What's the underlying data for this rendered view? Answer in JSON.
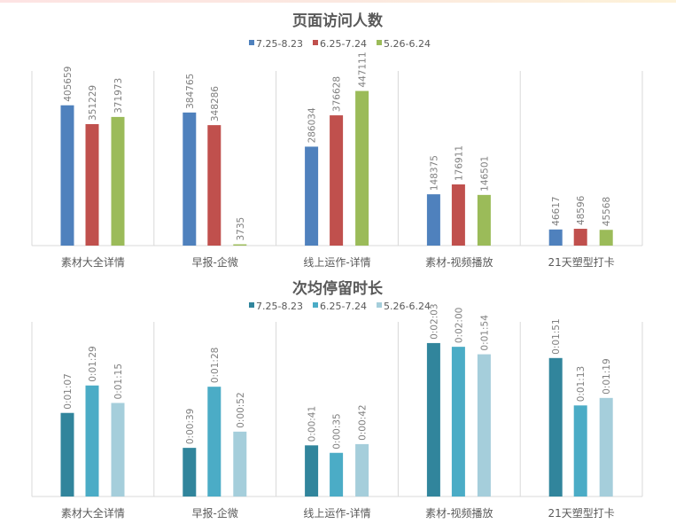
{
  "chart_data": [
    {
      "type": "bar",
      "title": "页面访问人数",
      "categories": [
        "素材大全详情",
        "早报-企微",
        "线上运作-详情",
        "素材-视频播放",
        "21天塑型打卡"
      ],
      "series": [
        {
          "name": "7.25-8.23",
          "color": "#4f81bd",
          "values": [
            405659,
            384765,
            286034,
            148375,
            46617
          ]
        },
        {
          "name": "6.25-7.24",
          "color": "#c0504d",
          "values": [
            351229,
            348286,
            376628,
            176911,
            48596
          ]
        },
        {
          "name": "5.26-6.24",
          "color": "#9bbb59",
          "values": [
            371973,
            3735,
            447111,
            146501,
            45568
          ]
        }
      ],
      "ylim": [
        0,
        505000
      ],
      "legend": "top",
      "grid": false
    },
    {
      "type": "bar",
      "title": "次均停留时长",
      "categories": [
        "素材大全详情",
        "早报-企微",
        "线上运作-详情",
        "素材-视频播放",
        "21天塑型打卡"
      ],
      "series": [
        {
          "name": "7.25-8.23",
          "color": "#31859c",
          "values": [
            67,
            39,
            41,
            123,
            111
          ],
          "labels": [
            "0:01:07",
            "0:00:39",
            "0:00:41",
            "0:02:03",
            "0:01:51"
          ]
        },
        {
          "name": "6.25-7.24",
          "color": "#4bacc6",
          "values": [
            89,
            88,
            35,
            120,
            73
          ],
          "labels": [
            "0:01:29",
            "0:01:28",
            "0:00:35",
            "0:02:00",
            "0:01:13"
          ]
        },
        {
          "name": "5.26-6.24",
          "color": "#a5cedb",
          "values": [
            75,
            52,
            42,
            114,
            79
          ],
          "labels": [
            "0:01:15",
            "0:00:52",
            "0:00:42",
            "0:01:54",
            "0:01:19"
          ]
        }
      ],
      "ylim": [
        0,
        140
      ],
      "legend": "top",
      "grid": false
    }
  ]
}
